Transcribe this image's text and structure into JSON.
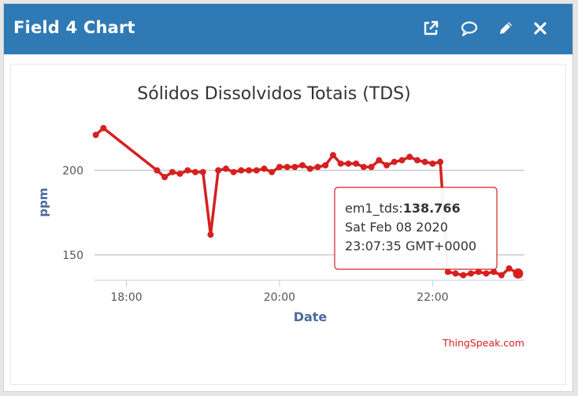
{
  "header": {
    "title": "Field 4 Chart",
    "buttons": [
      {
        "name": "open-external-button",
        "icon": "external-link-icon"
      },
      {
        "name": "comment-button",
        "icon": "speech-bubble-icon"
      },
      {
        "name": "edit-button",
        "icon": "pencil-icon"
      },
      {
        "name": "close-button",
        "icon": "close-icon"
      }
    ],
    "color": "#2f7ab5"
  },
  "chart_data": {
    "type": "line",
    "title": "Sólidos Dissolvidos Totais (TDS)",
    "xlabel": "Date",
    "ylabel": "ppm",
    "x_ticks": [
      "18:00",
      "20:00",
      "22:00"
    ],
    "y_ticks": [
      150,
      200
    ],
    "xlim": [
      "17:35",
      "23:12"
    ],
    "ylim": [
      135,
      230
    ],
    "grid": true,
    "series_color": "#d62020",
    "series": [
      {
        "name": "em1_tds",
        "points": [
          [
            "17:36",
            221
          ],
          [
            "17:42",
            225
          ],
          [
            "18:24",
            200
          ],
          [
            "18:30",
            196
          ],
          [
            "18:36",
            199
          ],
          [
            "18:42",
            198
          ],
          [
            "18:48",
            200
          ],
          [
            "18:54",
            199
          ],
          [
            "19:00",
            199
          ],
          [
            "19:06",
            162
          ],
          [
            "19:12",
            200
          ],
          [
            "19:18",
            201
          ],
          [
            "19:24",
            199
          ],
          [
            "19:30",
            200
          ],
          [
            "19:36",
            200
          ],
          [
            "19:42",
            200
          ],
          [
            "19:48",
            201
          ],
          [
            "19:54",
            199
          ],
          [
            "20:00",
            202
          ],
          [
            "20:06",
            202
          ],
          [
            "20:12",
            202
          ],
          [
            "20:18",
            203
          ],
          [
            "20:24",
            201
          ],
          [
            "20:30",
            202
          ],
          [
            "20:36",
            203
          ],
          [
            "20:42",
            209
          ],
          [
            "20:48",
            204
          ],
          [
            "20:54",
            204
          ],
          [
            "21:00",
            204
          ],
          [
            "21:06",
            202
          ],
          [
            "21:12",
            202
          ],
          [
            "21:18",
            206
          ],
          [
            "21:24",
            203
          ],
          [
            "21:30",
            205
          ],
          [
            "21:36",
            206
          ],
          [
            "21:42",
            208
          ],
          [
            "21:48",
            206
          ],
          [
            "21:54",
            205
          ],
          [
            "22:00",
            204
          ],
          [
            "22:06",
            205
          ],
          [
            "22:12",
            140
          ],
          [
            "22:18",
            139
          ],
          [
            "22:24",
            138
          ],
          [
            "22:30",
            139
          ],
          [
            "22:36",
            140
          ],
          [
            "22:42",
            139
          ],
          [
            "22:48",
            140
          ],
          [
            "22:54",
            138
          ],
          [
            "23:00",
            142
          ],
          [
            "23:07",
            139
          ]
        ]
      }
    ],
    "tooltip": {
      "series_label": "em1_tds:",
      "value": "138.766",
      "date_line": "Sat Feb 08 2020",
      "time_line": "23:07:35 GMT+0000"
    },
    "credit": "ThingSpeak.com"
  }
}
